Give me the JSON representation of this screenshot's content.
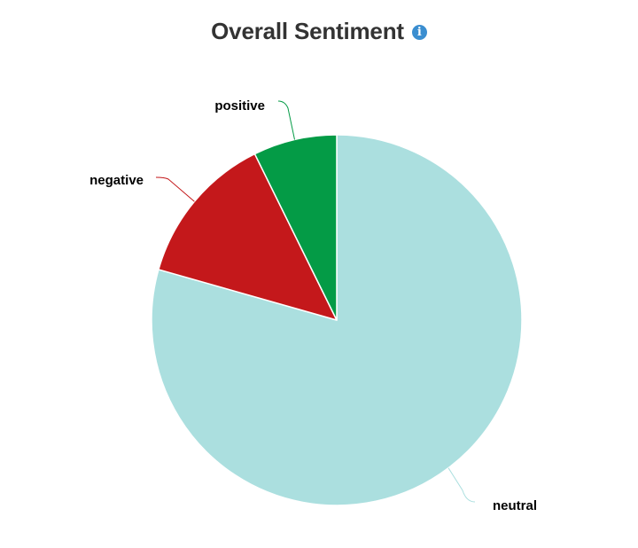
{
  "chart_data": {
    "type": "pie",
    "title": "Overall Sentiment",
    "categories": [
      "neutral",
      "negative",
      "positive"
    ],
    "values": [
      79.4,
      13.3,
      7.3
    ],
    "colors": [
      "#abdfdf",
      "#c4181b",
      "#049b46"
    ],
    "legend": false
  },
  "header": {
    "info_icon": "info-icon",
    "info_glyph": "i",
    "info_color": "#3b8ed0"
  }
}
